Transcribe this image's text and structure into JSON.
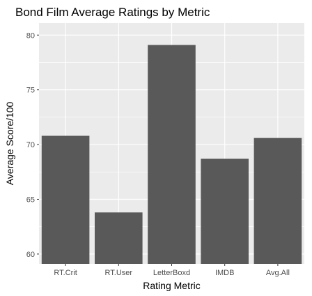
{
  "chart_data": {
    "type": "bar",
    "title": "Bond Film Average Ratings by Metric",
    "xlabel": "Rating Metric",
    "ylabel": "Average Score/100",
    "categories": [
      "RT.Crit",
      "RT.User",
      "LetterBoxd",
      "IMDB",
      "Avg.All"
    ],
    "values": [
      70.8,
      63.8,
      79.1,
      68.7,
      70.6
    ],
    "ylim": [
      59.1,
      81.1
    ],
    "yticks": [
      60,
      65,
      70,
      75,
      80
    ],
    "grid": true,
    "panel_color": "#ebebeb",
    "bar_color": "#595959",
    "grid_color": "#ffffff"
  }
}
